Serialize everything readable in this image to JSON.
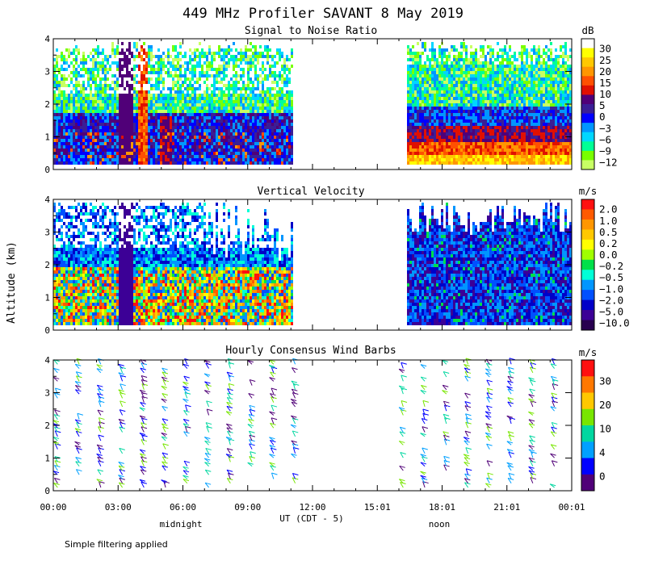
{
  "title": "449 MHz Profiler SAVANT  8 May 2019",
  "ylabel": "Altitude (km)",
  "xlabel": "UT  (CDT - 5)",
  "footnote": "Simple filtering applied",
  "day_labels": [
    "midnight",
    "noon"
  ],
  "x_ticks": [
    "00:00",
    "03:00",
    "06:00",
    "09:00",
    "12:00",
    "15:01",
    "18:01",
    "21:01",
    "00:01"
  ],
  "y_ticks": [
    "0",
    "1",
    "2",
    "3",
    "4"
  ],
  "chart_data": [
    {
      "type": "heatmap",
      "title": "Signal to Noise Ratio",
      "unit": "dB",
      "xlabel": "UT  (CDT - 5)",
      "ylabel": "Altitude (km)",
      "x_range_hours": [
        0,
        24
      ],
      "ylim": [
        0,
        4
      ],
      "data_gap_hours": [
        11.0,
        16.3
      ],
      "colorbar": {
        "labels": [
          "30",
          "25",
          "20",
          "15",
          "10",
          "5",
          "0",
          "−3",
          "−6",
          "−9",
          "−12"
        ],
        "colors": [
          "#ffffff",
          "#ffff00",
          "#ffc800",
          "#ff9600",
          "#ff5000",
          "#e01000",
          "#500078",
          "#3a1e96",
          "#0000ff",
          "#0096ff",
          "#00d7ff",
          "#00ff96",
          "#78ff00",
          "#c8ff64"
        ]
      }
    },
    {
      "type": "heatmap",
      "title": "Vertical Velocity",
      "unit": "m/s",
      "xlabel": "UT  (CDT - 5)",
      "ylabel": "Altitude (km)",
      "x_range_hours": [
        0,
        24
      ],
      "ylim": [
        0,
        4
      ],
      "data_gap_hours": [
        11.0,
        16.3
      ],
      "colorbar": {
        "labels": [
          "2.0",
          "1.0",
          "0.5",
          "0.2",
          "0.0",
          "−0.2",
          "−0.5",
          "−1.0",
          "−2.0",
          "−5.0",
          "−10.0"
        ],
        "colors": [
          "#ff1010",
          "#ff5a00",
          "#ff9600",
          "#ffc800",
          "#ffff00",
          "#a0ff00",
          "#00e04a",
          "#00ffd7",
          "#0096ff",
          "#0050ff",
          "#0000c8",
          "#3c0096",
          "#280050"
        ]
      }
    },
    {
      "type": "scatter",
      "title": "Hourly Consensus Wind Barbs",
      "unit": "m/s",
      "xlabel": "UT  (CDT - 5)",
      "ylabel": "Altitude (km)",
      "x_range_hours": [
        0,
        24
      ],
      "ylim": [
        0,
        4
      ],
      "colorbar": {
        "labels": [
          "30",
          "20",
          "10",
          "4",
          "0"
        ],
        "colors": [
          "#ff1010",
          "#ff7800",
          "#ffc800",
          "#78e600",
          "#00d7a0",
          "#00a0ff",
          "#0000ff",
          "#500078"
        ]
      }
    }
  ]
}
